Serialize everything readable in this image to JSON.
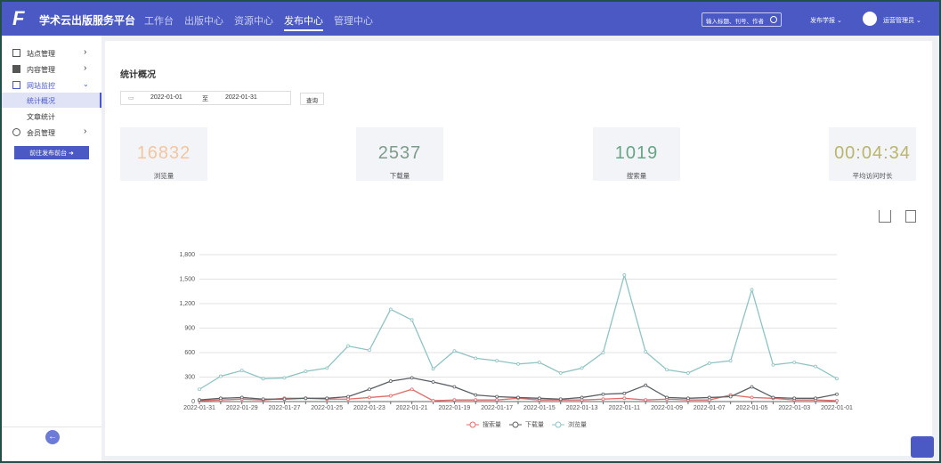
{
  "header": {
    "logo": "F",
    "title": "学术云出版服务平台",
    "nav": [
      "工作台",
      "出版中心",
      "资源中心",
      "发布中心",
      "管理中心"
    ],
    "search_placeholder": "输入标题、刊号、作者",
    "journal": "发布学报",
    "user": "运营管理员"
  },
  "sidebar": {
    "items": [
      "站点管理",
      "内容管理",
      "网站监控",
      "统计概况",
      "文章统计",
      "会员管理"
    ],
    "button": "前往发布前台"
  },
  "page": {
    "title": "统计概况",
    "date_start": "2022-01-01",
    "date_sep": "至",
    "date_end": "2022-01-31",
    "query": "查询"
  },
  "stats": [
    {
      "value": 16832,
      "label": "浏览量",
      "color": "#f3c6a0"
    },
    {
      "value": 2537,
      "label": "下载量",
      "color": "#7d9c8a"
    },
    {
      "value": 1019,
      "label": "搜索量",
      "color": "#66a585"
    },
    {
      "value": "00:04:34",
      "label": "平均访问时长",
      "color": "#b9b66c"
    }
  ],
  "chart_data": {
    "type": "line",
    "categories": [
      "2022-01-31",
      null,
      "2022-01-29",
      null,
      "2022-01-27",
      null,
      "2022-01-25",
      null,
      "2022-01-23",
      null,
      "2022-01-21",
      null,
      "2022-01-19",
      null,
      "2022-01-17",
      null,
      "2022-01-15",
      null,
      "2022-01-13",
      null,
      "2022-01-11",
      null,
      "2022-01-09",
      null,
      "2022-01-07",
      null,
      "2022-01-05",
      null,
      "2022-01-03",
      null,
      "2022-01-01"
    ],
    "series": [
      {
        "name": "搜索量",
        "color": "#e06c6c",
        "values": [
          10,
          20,
          30,
          20,
          40,
          40,
          30,
          30,
          50,
          70,
          150,
          10,
          20,
          20,
          20,
          40,
          20,
          20,
          20,
          30,
          40,
          20,
          30,
          20,
          20,
          80,
          50,
          40,
          20,
          20,
          10
        ]
      },
      {
        "name": "下载量",
        "color": "#5a5f63",
        "values": [
          20,
          40,
          50,
          30,
          30,
          40,
          40,
          60,
          150,
          250,
          290,
          240,
          180,
          80,
          60,
          50,
          40,
          30,
          50,
          90,
          100,
          200,
          50,
          40,
          50,
          60,
          180,
          50,
          40,
          40,
          90
        ]
      },
      {
        "name": "浏览量",
        "color": "#8fc3c2",
        "values": [
          150,
          310,
          380,
          280,
          290,
          370,
          410,
          680,
          630,
          1130,
          1000,
          400,
          620,
          530,
          500,
          460,
          480,
          350,
          410,
          600,
          1550,
          610,
          390,
          350,
          470,
          500,
          1370,
          450,
          480,
          430,
          280
        ]
      }
    ],
    "ylim": [
      0,
      1800
    ],
    "yticks": [
      0,
      300,
      600,
      900,
      {
        "value": 1200,
        "label": "1,200"
      },
      {
        "value": 1500,
        "label": "1,500"
      },
      {
        "value": 1800,
        "label": "1,800"
      }
    ],
    "grid": true,
    "legend": "bottom"
  }
}
